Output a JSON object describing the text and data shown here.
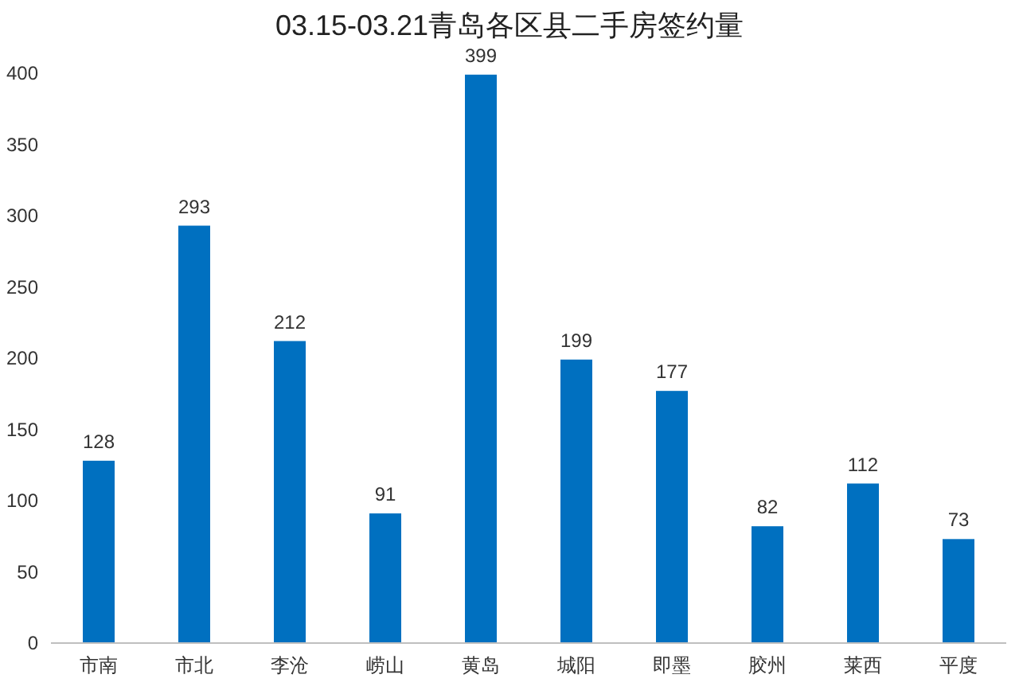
{
  "chart_data": {
    "type": "bar",
    "title": "03.15-03.21青岛各区县二手房签约量",
    "categories": [
      "市南",
      "市北",
      "李沧",
      "崂山",
      "黄岛",
      "城阳",
      "即墨",
      "胶州",
      "莱西",
      "平度"
    ],
    "values": [
      128,
      293,
      212,
      91,
      399,
      199,
      177,
      82,
      112,
      73
    ],
    "color": "#0070c0",
    "ylim": [
      0,
      400
    ],
    "yticks": [
      0,
      50,
      100,
      150,
      200,
      250,
      300,
      350,
      400
    ],
    "grid": false,
    "data_labels": true
  }
}
